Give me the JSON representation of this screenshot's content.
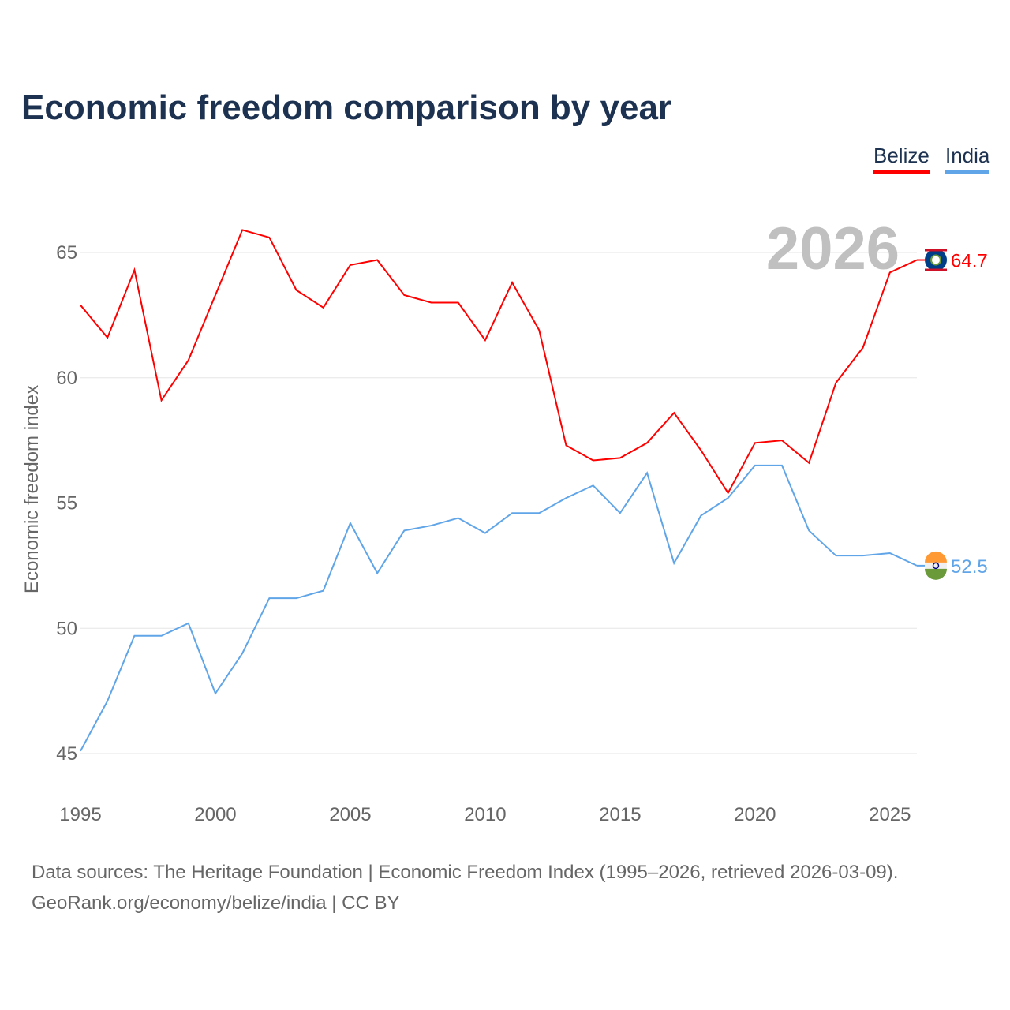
{
  "title": "Economic freedom comparison by year",
  "footer": {
    "line1": "Data sources: The Heritage Foundation | Economic Freedom Index (1995–2026, retrieved 2026-03-09).",
    "line2": "GeoRank.org/economy/belize/india | CC BY"
  },
  "chart_data": {
    "type": "line",
    "title": "Economic freedom comparison by year",
    "ylabel": "Economic freedom index",
    "xlabel": "",
    "year_watermark": "2026",
    "xlim": [
      1995,
      2026
    ],
    "ylim": [
      45,
      65
    ],
    "x_ticks": [
      1995,
      2000,
      2005,
      2010,
      2015,
      2020,
      2025
    ],
    "y_ticks": [
      45,
      50,
      55,
      60,
      65
    ],
    "grid": true,
    "legend_position": "top-right",
    "x": [
      1995,
      1996,
      1997,
      1998,
      1999,
      2000,
      2001,
      2002,
      2003,
      2004,
      2005,
      2006,
      2007,
      2008,
      2009,
      2010,
      2011,
      2012,
      2013,
      2014,
      2015,
      2016,
      2017,
      2018,
      2019,
      2020,
      2021,
      2022,
      2023,
      2024,
      2025,
      2026
    ],
    "series": [
      {
        "name": "Belize",
        "color": "#ff0000",
        "end_label": "64.7",
        "icon": "belize-flag-icon",
        "values": [
          62.9,
          61.6,
          64.3,
          59.1,
          60.7,
          63.3,
          65.9,
          65.6,
          63.5,
          62.8,
          64.5,
          64.7,
          63.3,
          63.0,
          63.0,
          61.5,
          63.8,
          61.9,
          57.3,
          56.7,
          56.8,
          57.4,
          58.6,
          57.1,
          55.4,
          57.4,
          57.5,
          56.6,
          59.8,
          61.2,
          64.2,
          64.7
        ]
      },
      {
        "name": "India",
        "color": "#60a5e8",
        "end_label": "52.5",
        "icon": "india-flag-icon",
        "values": [
          45.1,
          47.1,
          49.7,
          49.7,
          50.2,
          47.4,
          49.0,
          51.2,
          51.2,
          51.5,
          54.2,
          52.2,
          53.9,
          54.1,
          54.4,
          53.8,
          54.6,
          54.6,
          55.2,
          55.7,
          54.6,
          56.2,
          52.6,
          54.5,
          55.2,
          56.5,
          56.5,
          53.9,
          52.9,
          52.9,
          53.0,
          52.5
        ]
      }
    ]
  }
}
